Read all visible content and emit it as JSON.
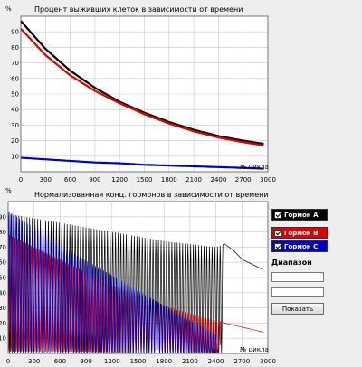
{
  "chart_data": [
    {
      "type": "line",
      "title": "Процент выживших клеток в зависимости от времени",
      "ylabel": "%",
      "xlabel": "№ цикла",
      "xlim": [
        0,
        3000
      ],
      "ylim": [
        0,
        100
      ],
      "xticks": [
        0,
        300,
        600,
        900,
        1200,
        1500,
        1800,
        2100,
        2400,
        2700,
        3000
      ],
      "yticks": [
        10,
        20,
        30,
        40,
        50,
        60,
        70,
        80,
        90
      ],
      "grid": true,
      "series": [
        {
          "color": "#000000",
          "x": [
            0,
            300,
            600,
            900,
            1200,
            1500,
            1800,
            2100,
            2400,
            2700,
            2950
          ],
          "y": [
            97,
            79,
            65,
            54,
            45,
            38,
            32,
            27,
            23,
            20,
            18
          ]
        },
        {
          "color": "#e00000",
          "x": [
            0,
            300,
            600,
            900,
            1200,
            1500,
            1800,
            2100,
            2400,
            2700,
            2950
          ],
          "y": [
            92,
            75,
            62,
            52,
            44,
            37,
            31,
            26,
            22,
            19,
            17
          ]
        },
        {
          "color": "#0000cc",
          "x": [
            0,
            300,
            600,
            900,
            1200,
            1500,
            1800,
            2100,
            2400,
            2700,
            2950
          ],
          "y": [
            9,
            8,
            7,
            6,
            5.5,
            4.5,
            4,
            3.5,
            3,
            2.5,
            2
          ]
        }
      ]
    },
    {
      "type": "line",
      "title": "Нормализованная конц. гормонов в зависимости от времени",
      "ylabel": "%",
      "xlabel": "№ цикла",
      "xlim": [
        0,
        3000
      ],
      "ylim": [
        0,
        100
      ],
      "xticks": [
        0,
        300,
        600,
        900,
        1200,
        1500,
        1800,
        2100,
        2400,
        2700,
        3000
      ],
      "yticks": [
        10,
        20,
        30,
        40,
        50,
        60,
        70,
        80,
        90
      ],
      "grid": true,
      "series": [
        {
          "color": "#000000",
          "peak_x": [
            0,
            600,
            1200,
            1800,
            2400,
            2500,
            2600,
            2700,
            2950
          ],
          "peak_y": [
            92,
            86,
            80,
            74,
            70,
            72,
            68,
            62,
            55
          ],
          "trough_y": 0,
          "cycles": 80,
          "end_x": 2480
        },
        {
          "color": "#e00000",
          "peak_x": [
            0,
            600,
            1200,
            1800,
            2400,
            2500,
            2950
          ],
          "peak_y": [
            80,
            63,
            46,
            32,
            22,
            20,
            14
          ],
          "trough_y": 0,
          "cycles": 80,
          "end_x": 2450
        },
        {
          "color": "#0000cc",
          "peak_x": [
            0,
            600,
            1200,
            1800,
            2420
          ],
          "peak_y": [
            95,
            72,
            52,
            32,
            12
          ],
          "trough_y": 0,
          "cycles": 80,
          "end_x": 2420
        }
      ]
    }
  ],
  "legend": {
    "items": [
      {
        "label": "Гормон A",
        "color": "#000000",
        "checked": true
      },
      {
        "label": "Гормон B",
        "color": "#e00000",
        "checked": true
      },
      {
        "label": "Гормон C",
        "color": "#0000cc",
        "checked": true
      }
    ]
  },
  "range": {
    "label": "Диапазон",
    "from_value": "",
    "to_value": "",
    "show_label": "Показать"
  }
}
